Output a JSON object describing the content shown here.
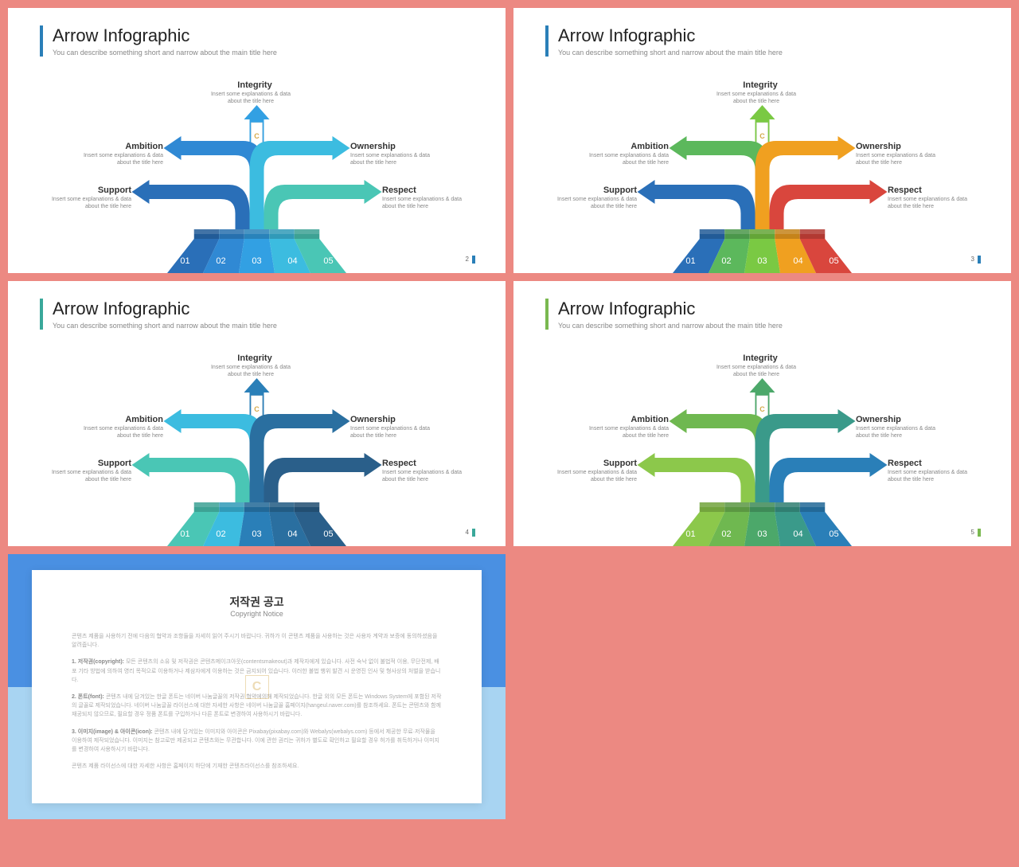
{
  "background": "#ec8982",
  "slides": [
    {
      "title": "Arrow Infographic",
      "subtitle": "You can describe something short and narrow about the main title here",
      "accent": "#2a7fb8",
      "page": "2",
      "colors": [
        "#2a6fb8",
        "#3089d4",
        "#32a0e3",
        "#3cbce0",
        "#4ac6b5"
      ],
      "labels": {
        "top": {
          "t": "Integrity",
          "d1": "Insert some explanations & data",
          "d2": "about the title here"
        },
        "l1": {
          "t": "Ambition",
          "d1": "Insert some explanations & data",
          "d2": "about the title here"
        },
        "r1": {
          "t": "Ownership",
          "d1": "Insert some explanations & data",
          "d2": "about the title here"
        },
        "l2": {
          "t": "Support",
          "d1": "Insert some explanations & data",
          "d2": "about the title here"
        },
        "r2": {
          "t": "Respect",
          "d1": "Insert some explanations & data",
          "d2": "about the title here"
        }
      },
      "nums": [
        "01",
        "02",
        "03",
        "04",
        "05"
      ]
    },
    {
      "title": "Arrow Infographic",
      "subtitle": "You can describe something short and narrow about the main title here",
      "accent": "#2a7fb8",
      "page": "3",
      "colors": [
        "#2a6fb8",
        "#5cb85c",
        "#7ac943",
        "#f0a020",
        "#d9463d"
      ],
      "labels": {
        "top": {
          "t": "Integrity",
          "d1": "Insert some explanations & data",
          "d2": "about the title here"
        },
        "l1": {
          "t": "Ambition",
          "d1": "Insert some explanations & data",
          "d2": "about the title here"
        },
        "r1": {
          "t": "Ownership",
          "d1": "Insert some explanations & data",
          "d2": "about the title here"
        },
        "l2": {
          "t": "Support",
          "d1": "Insert some explanations & data",
          "d2": "about the title here"
        },
        "r2": {
          "t": "Respect",
          "d1": "Insert some explanations & data",
          "d2": "about the title here"
        }
      },
      "nums": [
        "01",
        "02",
        "03",
        "04",
        "05"
      ]
    },
    {
      "title": "Arrow Infographic",
      "subtitle": "You can describe something short and narrow about the main title here",
      "accent": "#3aa89a",
      "page": "4",
      "colors": [
        "#4ac6b5",
        "#3cbce0",
        "#2a7fb8",
        "#2a6fa0",
        "#2a5f8a"
      ],
      "labels": {
        "top": {
          "t": "Integrity",
          "d1": "Insert some explanations & data",
          "d2": "about the title here"
        },
        "l1": {
          "t": "Ambition",
          "d1": "Insert some explanations & data",
          "d2": "about the title here"
        },
        "r1": {
          "t": "Ownership",
          "d1": "Insert some explanations & data",
          "d2": "about the title here"
        },
        "l2": {
          "t": "Support",
          "d1": "Insert some explanations & data",
          "d2": "about the title here"
        },
        "r2": {
          "t": "Respect",
          "d1": "Insert some explanations & data",
          "d2": "about the title here"
        }
      },
      "nums": [
        "01",
        "02",
        "03",
        "04",
        "05"
      ]
    },
    {
      "title": "Arrow Infographic",
      "subtitle": "You can describe something short and narrow about the main title here",
      "accent": "#7ab850",
      "page": "5",
      "colors": [
        "#8cc84b",
        "#6fb850",
        "#4ca86a",
        "#3a9a8a",
        "#2a7fb8"
      ],
      "labels": {
        "top": {
          "t": "Integrity",
          "d1": "Insert some explanations & data",
          "d2": "about the title here"
        },
        "l1": {
          "t": "Ambition",
          "d1": "Insert some explanations & data",
          "d2": "about the title here"
        },
        "r1": {
          "t": "Ownership",
          "d1": "Insert some explanations & data",
          "d2": "about the title here"
        },
        "l2": {
          "t": "Support",
          "d1": "Insert some explanations & data",
          "d2": "about the title here"
        },
        "r2": {
          "t": "Respect",
          "d1": "Insert some explanations & data",
          "d2": "about the title here"
        }
      },
      "nums": [
        "01",
        "02",
        "03",
        "04",
        "05"
      ]
    }
  ],
  "copyright": {
    "title_kr": "저작권 공고",
    "title_en": "Copyright Notice",
    "top_color": "#4a90e2",
    "bot_color": "#a8d4f2",
    "paragraphs": [
      "콘텐츠 제품을 사용하기 전에 다음의 협약과 조항들을 자세히 읽어 주시기 바랍니다. 귀하가 이 콘텐츠 제품을 사용하는 것은 사용자 계약과 보증에 동의하셨음을 알려줍니다.",
      "<b>1. 저작권(copyright):</b> 모든 콘텐츠의 소유 및 저작권은 콘텐츠메이크아웃(contentsmakeout)과 제작자에게 있습니다. 사전 숙낙 없이 불법적 이용, 무단전제, 배포 기타 방법에 의하여 영리 목적으로 이용하거나 제삼자에게 이용하는 것은 금지되어 있습니다. 이러한 불법 행위 발견 시 운영진 인사 및 형사상의 처벌을 받습니다.",
      "<b>2. 폰트(font):</b> 콘텐츠 내에 담겨있는 한글 폰트는 네이버 나눔글꼴의 저작권 협약에의해 제작되었습니다. 한글 외의 모든 폰트는 Windows System에 포함된 저작의 글꼴로 제작되었습니다. 네이버 나눔글꼴 라이선스에 대한 자세한 사항은 네이버 나눔글꼴 홈페이지(hangeul.naver.com)를 참조하세요. 폰트는 콘텐츠와 함께 재공되지 않으므로, 필요할 경우 정품 폰트를 구입하거나 다른 폰트로 변경하여 사용하시기 바랍니다.",
      "<b>3. 이미지(image) & 아이콘(icon):</b> 콘텐츠 내에 담겨있는 이미지와 아이콘은 Pixabay(pixabay.com)와 Webalys(webalys.com) 등에서 제공한 무료·저작물을 이용하여 제작되었습니다. 이미지는 참고로만 제공되고 콘텐츠와는 무관합니다. 이에 관한 권리는 귀하가 별도로 확인하고 필요할 경우 허가를 취득하거나 이미지를 변경하여 사용하시기 바랍니다.",
      "콘텐츠 제품 라이선스에 대한 자세한 사항은 홈페이지 하단에 기재한 콘텐츠라이선스를 참조하세요."
    ]
  }
}
